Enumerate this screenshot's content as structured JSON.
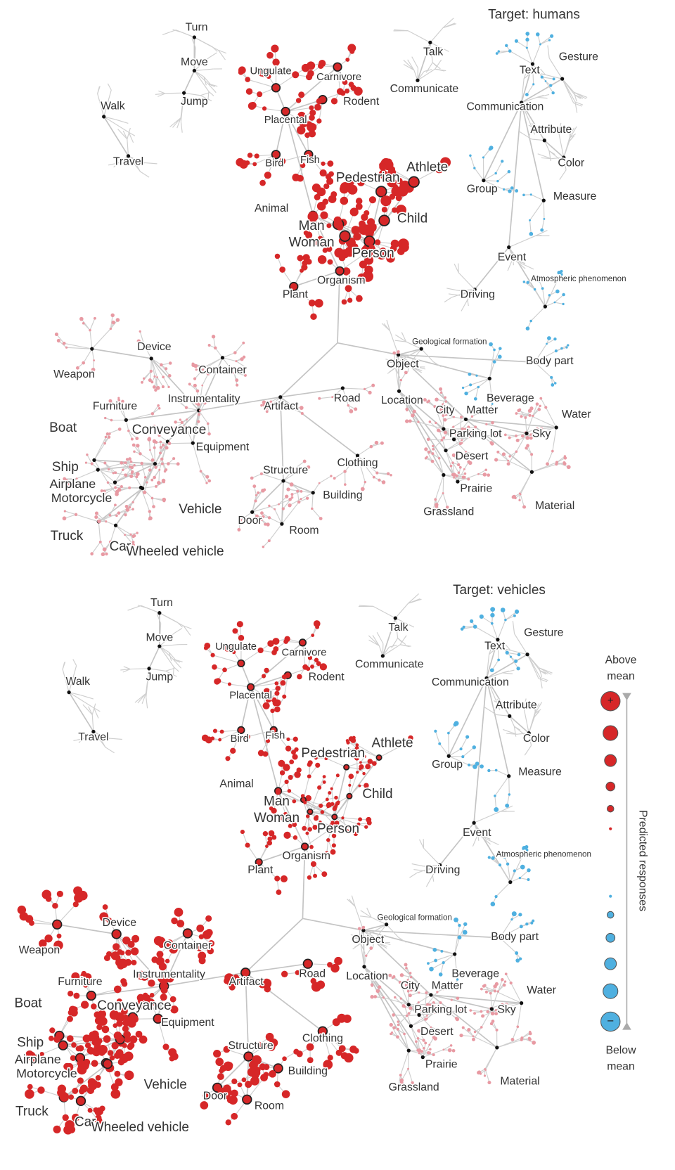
{
  "panels": [
    {
      "title": "Target: humans",
      "nodes": [
        "Turn",
        "Move",
        "Jump",
        "Walk",
        "Travel",
        "Ungulate",
        "Carnivore",
        "Rodent",
        "Placental",
        "Bird",
        "Fish",
        "Animal",
        "Pedestrian",
        "Athlete",
        "Man",
        "Woman",
        "Child",
        "Person",
        "Organism",
        "Plant",
        "Talk",
        "Communicate",
        "Text",
        "Gesture",
        "Communication",
        "Attribute",
        "Color",
        "Group",
        "Measure",
        "Event",
        "Driving",
        "Atmospheric phenomenon",
        "Geological formation",
        "Object",
        "Body part",
        "Beverage",
        "Location",
        "Device",
        "Weapon",
        "Container",
        "Furniture",
        "Instrumentality",
        "Artifact",
        "Road",
        "Conveyance",
        "Equipment",
        "Boat",
        "Ship",
        "Airplane",
        "Motorcycle",
        "Vehicle",
        "Truck",
        "Car",
        "Wheeled vehicle",
        "Structure",
        "Clothing",
        "Building",
        "Door",
        "Room",
        "City",
        "Matter",
        "Water",
        "Parking lot",
        "Sky",
        "Desert",
        "Prairie",
        "Grassland",
        "Material"
      ]
    },
    {
      "title": "Target: vehicles",
      "nodes": [
        "Turn",
        "Move",
        "Jump",
        "Walk",
        "Travel",
        "Ungulate",
        "Carnivore",
        "Rodent",
        "Placental",
        "Bird",
        "Fish",
        "Animal",
        "Pedestrian",
        "Athlete",
        "Man",
        "Woman",
        "Child",
        "Person",
        "Organism",
        "Plant",
        "Talk",
        "Communicate",
        "Text",
        "Gesture",
        "Communication",
        "Attribute",
        "Color",
        "Group",
        "Measure",
        "Event",
        "Driving",
        "Atmospheric phenomenon",
        "Geological formation",
        "Object",
        "Body part",
        "Beverage",
        "Location",
        "Device",
        "Weapon",
        "Container",
        "Furniture",
        "Instrumentality",
        "Artifact",
        "Road",
        "Conveyance",
        "Equipment",
        "Boat",
        "Ship",
        "Airplane",
        "Motorcycle",
        "Vehicle",
        "Truck",
        "Car",
        "Wheeled vehicle",
        "Structure",
        "Clothing",
        "Building",
        "Door",
        "Room",
        "City",
        "Matter",
        "Water",
        "Parking lot",
        "Sky",
        "Desert",
        "Prairie",
        "Grassland",
        "Material"
      ]
    }
  ],
  "legend": {
    "top": [
      "Above",
      "mean"
    ],
    "bottom": [
      "Below",
      "mean"
    ],
    "axis": "Predicted responses",
    "plus": "+",
    "minus": "−"
  }
}
